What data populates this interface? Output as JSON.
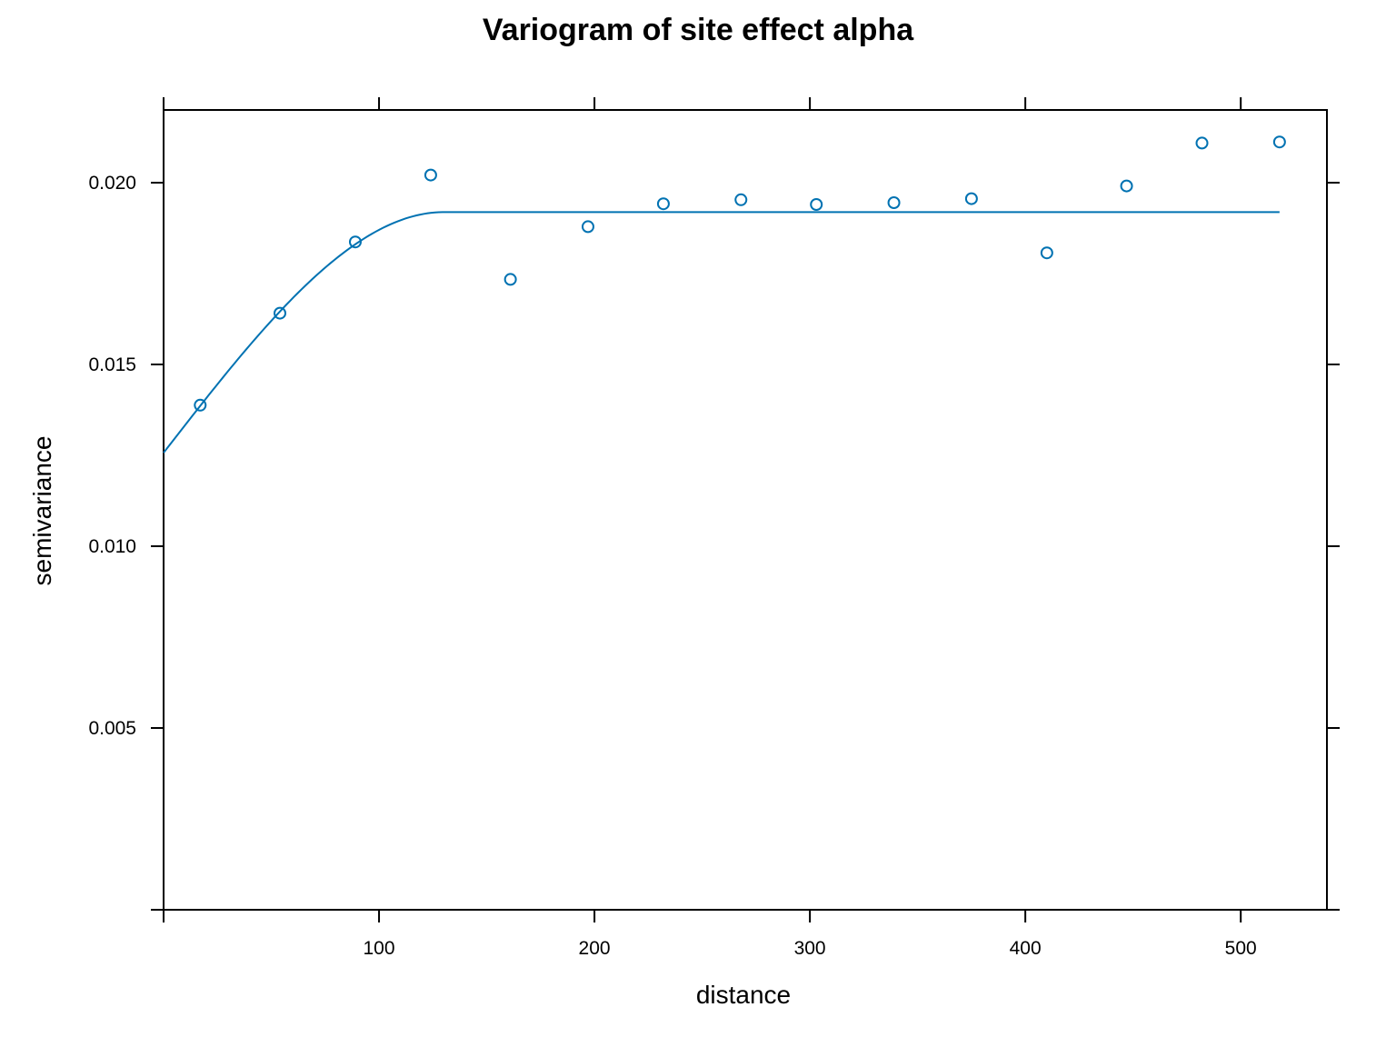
{
  "chart_data": {
    "type": "scatter",
    "title": "Variogram of site effect alpha",
    "xlabel": "distance",
    "ylabel": "semivariance",
    "xlim": [
      0,
      540
    ],
    "ylim": [
      0,
      0.022
    ],
    "x_ticks": [
      100,
      200,
      300,
      400,
      500
    ],
    "x_tick_labels": [
      "100",
      "200",
      "300",
      "400",
      "500"
    ],
    "y_ticks": [
      0.0,
      0.005,
      0.01,
      0.015,
      0.02
    ],
    "y_tick_labels": [
      "",
      "0.005",
      "0.010",
      "0.015",
      "0.020"
    ],
    "grid": false,
    "legend": "none",
    "point_color": "#0072B2",
    "line_color": "#0072B2",
    "series": [
      {
        "kind": "points",
        "x": [
          17,
          54,
          89,
          124,
          161,
          197,
          232,
          268,
          303,
          339,
          375,
          410,
          447,
          482,
          518
        ],
        "y": [
          0.01388,
          0.01641,
          0.01837,
          0.02021,
          0.01734,
          0.01879,
          0.01942,
          0.01953,
          0.0194,
          0.01945,
          0.01956,
          0.01807,
          0.01991,
          0.02109,
          0.02112
        ]
      },
      {
        "kind": "fitted-model",
        "model": "spherical",
        "nugget": 0.01257,
        "sill": 0.01919,
        "range": 130,
        "x_max": 518
      }
    ]
  }
}
